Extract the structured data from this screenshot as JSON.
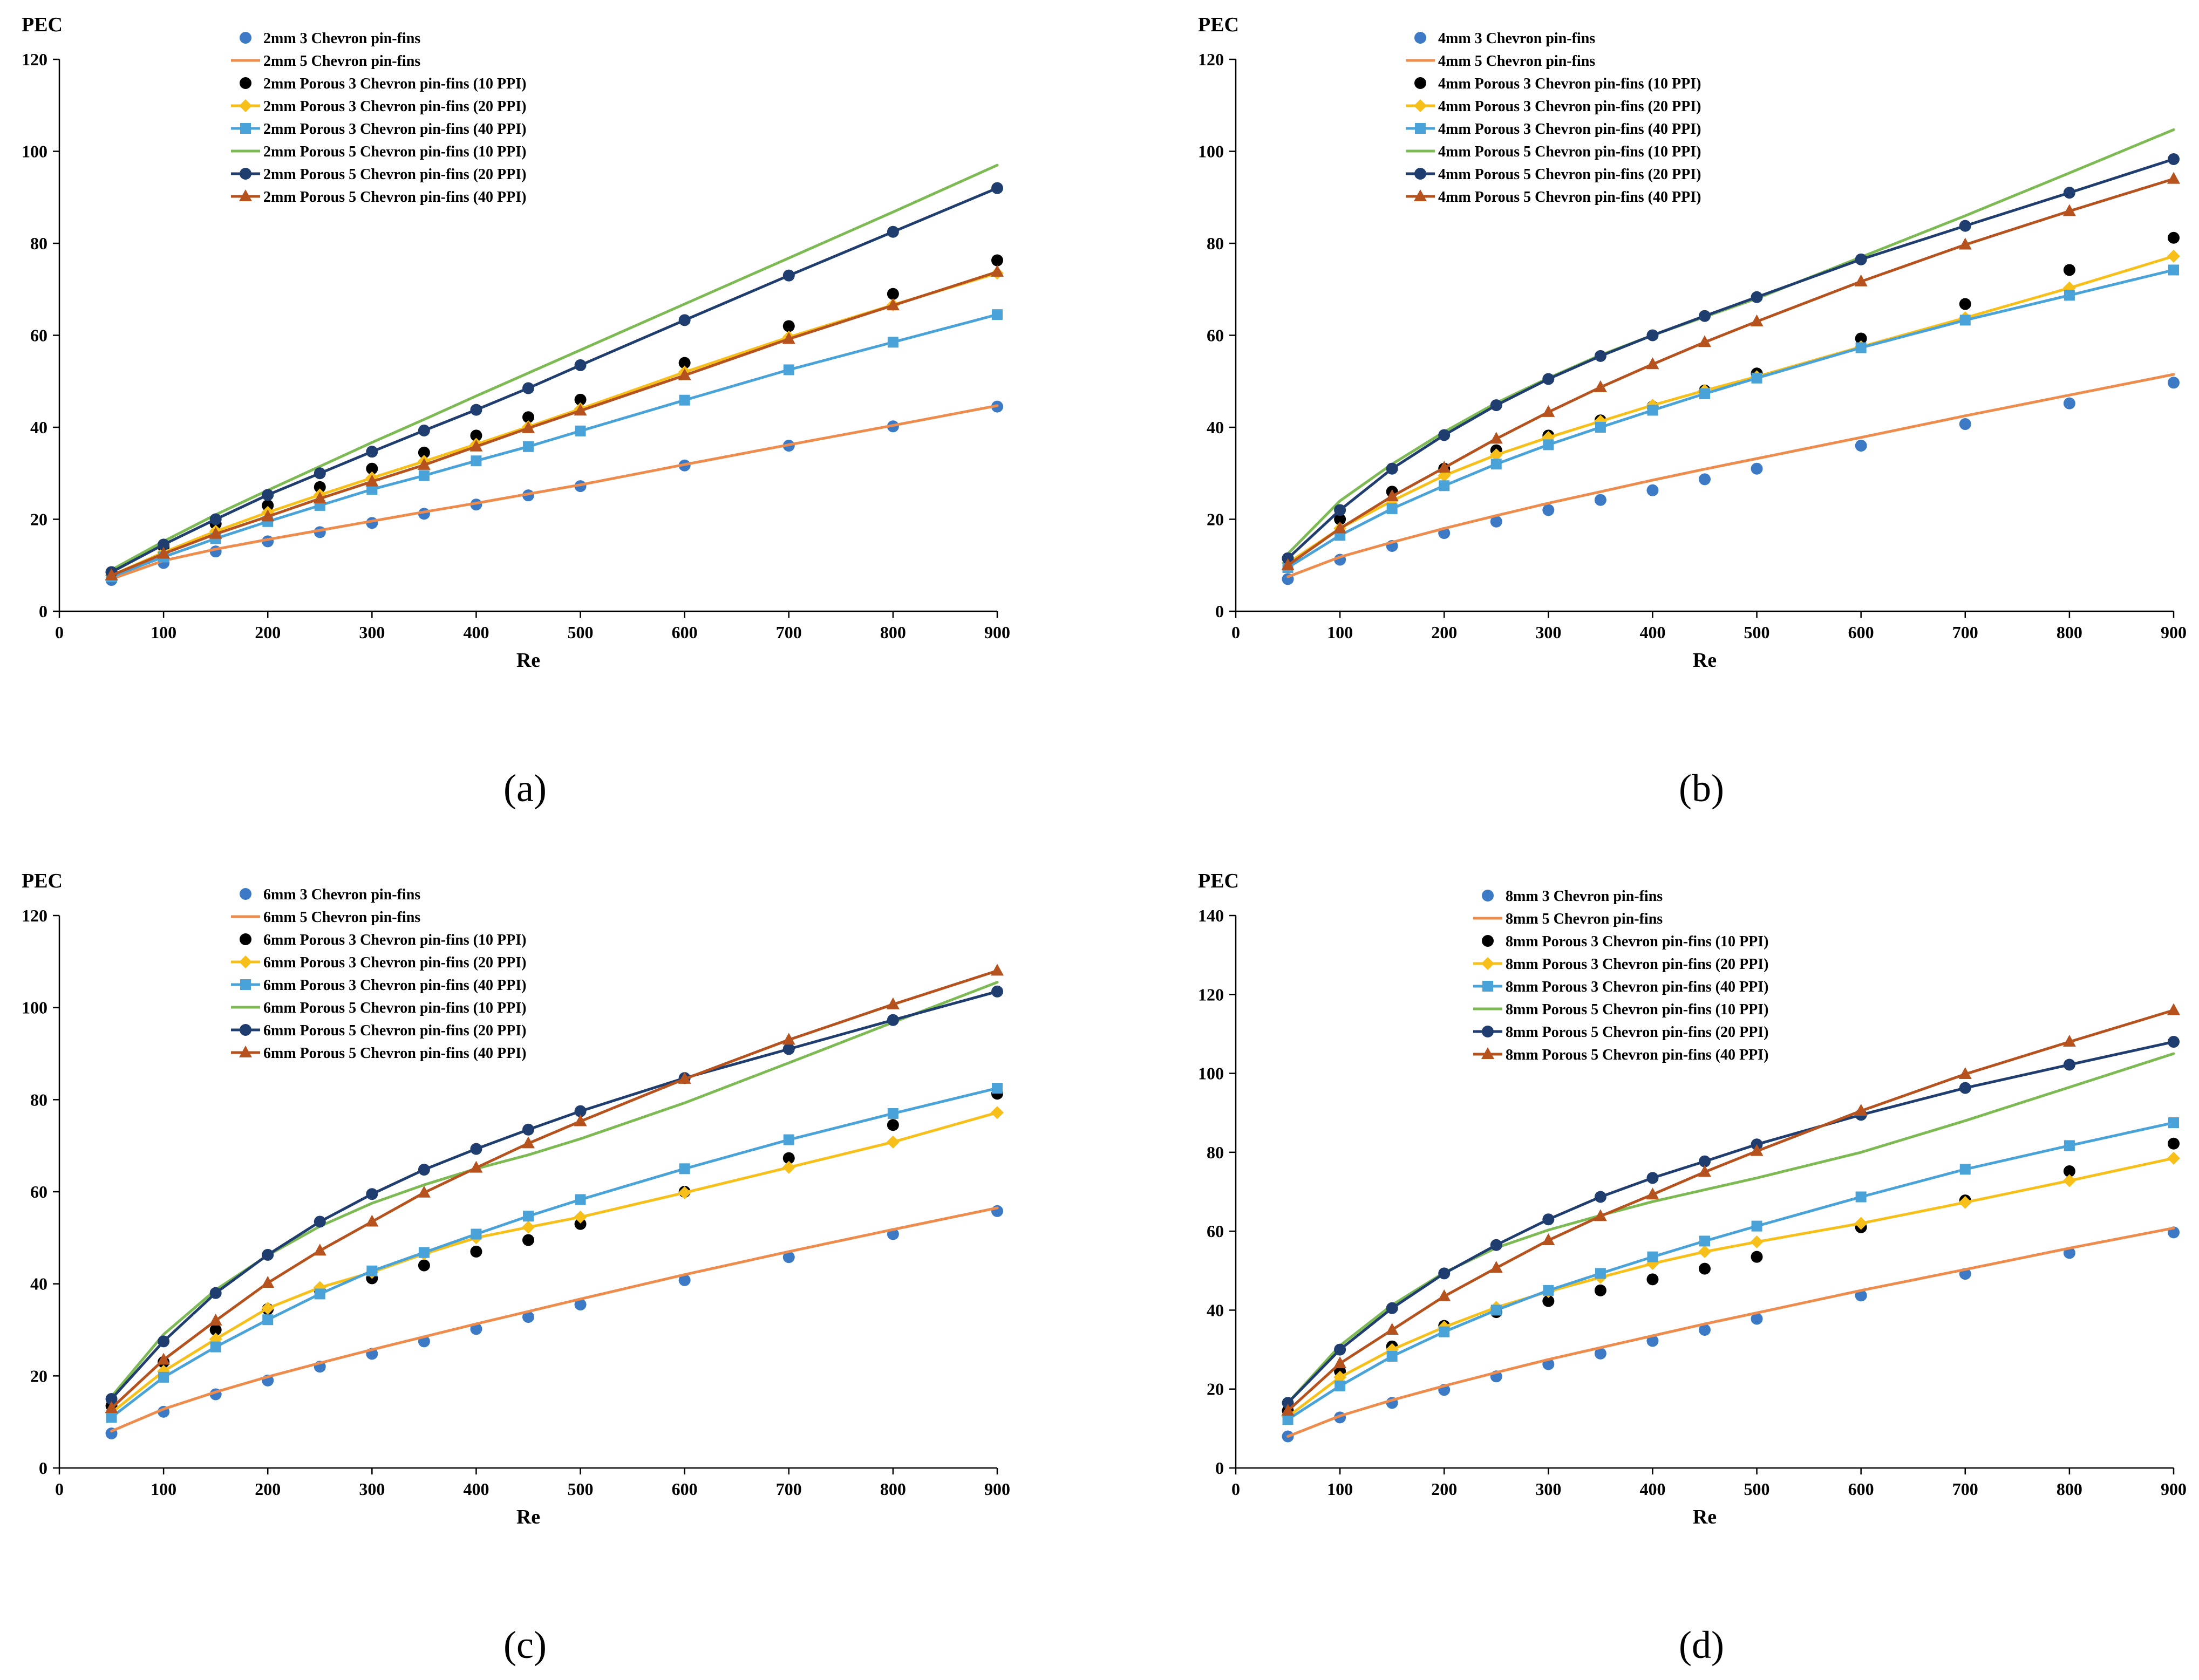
{
  "figure": {
    "captions": [
      "(a)",
      "(b)",
      "(c)",
      "(d)"
    ]
  },
  "series_styles": [
    {
      "color": "#3d7ac6",
      "marker": "circle",
      "line": false
    },
    {
      "color": "#ee8c4e",
      "marker": "none",
      "line": true
    },
    {
      "color": "#000000",
      "marker": "circle",
      "line": false
    },
    {
      "color": "#f7bf1a",
      "marker": "diamond",
      "line": true
    },
    {
      "color": "#4aa3d8",
      "marker": "square",
      "line": true
    },
    {
      "color": "#7dba54",
      "marker": "none",
      "line": true
    },
    {
      "color": "#1f3d6e",
      "marker": "circle",
      "line": true
    },
    {
      "color": "#b6521e",
      "marker": "triangle",
      "line": true
    }
  ],
  "chart_data": [
    {
      "type": "line",
      "panel": "(a)",
      "title": "",
      "xlabel": "Re",
      "ylabel": "PEC",
      "xlim": [
        0,
        900
      ],
      "ylim": [
        0,
        120
      ],
      "xticks": [
        0,
        100,
        200,
        300,
        400,
        500,
        600,
        700,
        800,
        900
      ],
      "yticks": [
        0,
        20,
        40,
        60,
        80,
        100,
        120
      ],
      "x": [
        50,
        100,
        150,
        200,
        250,
        300,
        350,
        400,
        450,
        500,
        600,
        700,
        800,
        900
      ],
      "series": [
        {
          "name": "2mm 3 Chevron pin-fins",
          "values": [
            6.8,
            10.5,
            13,
            15.2,
            17.2,
            19.2,
            21.2,
            23.2,
            25.2,
            27.2,
            31.7,
            36,
            40.2,
            44.5
          ]
        },
        {
          "name": "2mm 5 Chevron pin-fins",
          "values": [
            7,
            11,
            13.5,
            15.6,
            17.6,
            19.6,
            21.6,
            23.5,
            25.5,
            27.5,
            31.9,
            36.2,
            40.4,
            44.7
          ]
        },
        {
          "name": "2mm Porous 3 Chevron pin-fins (10 PPI)",
          "values": [
            8.5,
            14,
            19,
            23,
            27,
            31,
            34.5,
            38.2,
            42.2,
            46,
            54,
            62,
            69,
            76.3
          ]
        },
        {
          "name": "2mm Porous 3 Chevron pin-fins (20 PPI)",
          "values": [
            7.8,
            12.8,
            17.4,
            21.5,
            25.3,
            29,
            32.6,
            36.3,
            40.1,
            44,
            52,
            59.6,
            66.6,
            73.5
          ]
        },
        {
          "name": "2mm Porous 3 Chevron pin-fins (40 PPI)",
          "values": [
            7.5,
            11.8,
            15.8,
            19.5,
            23,
            26.5,
            29.5,
            32.7,
            35.8,
            39.2,
            45.9,
            52.5,
            58.5,
            64.5
          ]
        },
        {
          "name": "2mm Porous 5 Chevron pin-fins (10 PPI)",
          "values": [
            9,
            15.2,
            21,
            26.3,
            31.5,
            36.7,
            41.7,
            46.8,
            51.8,
            56.8,
            66.8,
            76.8,
            86.8,
            97
          ]
        },
        {
          "name": "2mm Porous 5 Chevron pin-fins (20 PPI)",
          "values": [
            8.5,
            14.5,
            20,
            25.3,
            30,
            34.7,
            39.3,
            43.8,
            48.5,
            53.5,
            63.3,
            73,
            82.5,
            92
          ]
        },
        {
          "name": "2mm Porous 5 Chevron pin-fins (40 PPI)",
          "values": [
            7.8,
            12.5,
            16.8,
            20.6,
            24.5,
            28.2,
            31.8,
            35.8,
            39.8,
            43.6,
            51.3,
            59.2,
            66.5,
            73.8
          ]
        }
      ]
    },
    {
      "type": "line",
      "panel": "(b)",
      "title": "",
      "xlabel": "Re",
      "ylabel": "PEC",
      "xlim": [
        0,
        900
      ],
      "ylim": [
        0,
        120
      ],
      "xticks": [
        0,
        100,
        200,
        300,
        400,
        500,
        600,
        700,
        800,
        900
      ],
      "yticks": [
        0,
        20,
        40,
        60,
        80,
        100,
        120
      ],
      "x": [
        50,
        100,
        150,
        200,
        250,
        300,
        350,
        400,
        450,
        500,
        600,
        700,
        800,
        900
      ],
      "series": [
        {
          "name": "4mm 3 Chevron pin-fins",
          "values": [
            7,
            11.2,
            14.2,
            17,
            19.5,
            22,
            24.2,
            26.3,
            28.7,
            31,
            36,
            40.7,
            45.2,
            49.7
          ]
        },
        {
          "name": "4mm 5 Chevron pin-fins",
          "values": [
            7.5,
            11.8,
            15,
            18,
            20.8,
            23.5,
            26,
            28.5,
            30.9,
            33.2,
            37.8,
            42.5,
            47,
            51.5
          ]
        },
        {
          "name": "4mm Porous 3 Chevron pin-fins (10 PPI)",
          "values": [
            11.5,
            20,
            26,
            31,
            35,
            38.2,
            41.5,
            44.5,
            48,
            51.7,
            59.3,
            66.8,
            74.2,
            81.2
          ]
        },
        {
          "name": "4mm Porous 3 Chevron pin-fins (20 PPI)",
          "values": [
            10.5,
            18,
            24,
            29.5,
            34,
            37.8,
            41.3,
            44.8,
            48,
            51,
            57.5,
            63.8,
            70.3,
            77.2
          ]
        },
        {
          "name": "4mm Porous 3 Chevron pin-fins (40 PPI)",
          "values": [
            9.5,
            16.5,
            22.3,
            27.3,
            32,
            36.2,
            40,
            43.7,
            47.3,
            50.7,
            57.3,
            63.3,
            68.7,
            74.2
          ]
        },
        {
          "name": "4mm Porous 5 Chevron pin-fins (10 PPI)",
          "values": [
            12.5,
            24,
            32,
            39,
            45.3,
            50.7,
            55.7,
            60,
            64,
            68,
            77,
            86,
            95.3,
            104.7
          ]
        },
        {
          "name": "4mm Porous 5 Chevron pin-fins (20 PPI)",
          "values": [
            11.5,
            22,
            31,
            38.3,
            44.8,
            50.5,
            55.5,
            60,
            64.2,
            68.3,
            76.5,
            83.8,
            91,
            98.3
          ]
        },
        {
          "name": "4mm Porous 5 Chevron pin-fins (40 PPI)",
          "values": [
            10,
            18,
            25,
            31.2,
            37.5,
            43.3,
            48.7,
            53.7,
            58.5,
            63,
            71.7,
            79.7,
            87,
            94
          ]
        }
      ]
    },
    {
      "type": "line",
      "panel": "(c)",
      "title": "",
      "xlabel": "Re",
      "ylabel": "PEC",
      "xlim": [
        0,
        900
      ],
      "ylim": [
        0,
        120
      ],
      "xticks": [
        0,
        100,
        200,
        300,
        400,
        500,
        600,
        700,
        800,
        900
      ],
      "yticks": [
        0,
        20,
        40,
        60,
        80,
        100,
        120
      ],
      "x": [
        50,
        100,
        150,
        200,
        250,
        300,
        350,
        400,
        450,
        500,
        600,
        700,
        800,
        900
      ],
      "series": [
        {
          "name": "6mm 3 Chevron pin-fins",
          "values": [
            7.5,
            12.2,
            16,
            19,
            22,
            24.8,
            27.5,
            30.2,
            32.8,
            35.5,
            40.8,
            45.8,
            50.8,
            55.8
          ]
        },
        {
          "name": "6mm 5 Chevron pin-fins",
          "values": [
            8,
            12.8,
            16.5,
            19.8,
            22.8,
            25.7,
            28.5,
            31.3,
            34,
            36.7,
            42,
            47,
            51.8,
            56.5
          ]
        },
        {
          "name": "6mm Porous 3 Chevron pin-fins (10 PPI)",
          "values": [
            13.5,
            23,
            30,
            34.5,
            38.5,
            41.2,
            44,
            47,
            49.5,
            53,
            60,
            67.3,
            74.5,
            81.3
          ]
        },
        {
          "name": "6mm Porous 3 Chevron pin-fins (20 PPI)",
          "values": [
            12,
            21,
            28,
            34.7,
            39.2,
            42.5,
            46.5,
            50,
            52.3,
            54.5,
            59.8,
            65.3,
            70.8,
            77.2
          ]
        },
        {
          "name": "6mm Porous 3 Chevron pin-fins (40 PPI)",
          "values": [
            11,
            19.7,
            26.3,
            32.2,
            37.8,
            42.8,
            46.8,
            50.8,
            54.7,
            58.3,
            65,
            71.3,
            77,
            82.5
          ]
        },
        {
          "name": "6mm Porous 5 Chevron pin-fins (10 PPI)",
          "values": [
            15.5,
            29,
            38.7,
            46.2,
            52.5,
            57.5,
            61.5,
            65,
            68,
            71.5,
            79.3,
            88,
            96.8,
            105.5
          ]
        },
        {
          "name": "6mm Porous 5 Chevron pin-fins (20 PPI)",
          "values": [
            15,
            27.5,
            38,
            46.3,
            53.5,
            59.5,
            64.8,
            69.3,
            73.5,
            77.5,
            84.7,
            91,
            97.3,
            103.5
          ]
        },
        {
          "name": "6mm Porous 5 Chevron pin-fins (40 PPI)",
          "values": [
            13,
            23.5,
            32,
            40.2,
            47.2,
            53.5,
            59.8,
            65.2,
            70.5,
            75.3,
            84.5,
            93,
            100.7,
            108
          ]
        }
      ]
    },
    {
      "type": "line",
      "panel": "(d)",
      "title": "",
      "xlabel": "Re",
      "ylabel": "PEC",
      "xlim": [
        0,
        900
      ],
      "ylim": [
        0,
        140
      ],
      "xticks": [
        0,
        100,
        200,
        300,
        400,
        500,
        600,
        700,
        800,
        900
      ],
      "yticks": [
        0,
        20,
        40,
        60,
        80,
        100,
        120,
        140
      ],
      "x": [
        50,
        100,
        150,
        200,
        250,
        300,
        350,
        400,
        450,
        500,
        600,
        700,
        800,
        900
      ],
      "series": [
        {
          "name": "8mm 3 Chevron pin-fins",
          "values": [
            8,
            12.8,
            16.5,
            19.8,
            23.2,
            26.3,
            29,
            32.2,
            35,
            37.8,
            43.7,
            49.2,
            54.5,
            59.7
          ]
        },
        {
          "name": "8mm 5 Chevron pin-fins",
          "values": [
            8,
            13.2,
            17.2,
            20.8,
            24.2,
            27.5,
            30.5,
            33.5,
            36.5,
            39.3,
            45,
            50.3,
            55.7,
            60.8
          ]
        },
        {
          "name": "8mm Porous 3 Chevron pin-fins (10 PPI)",
          "values": [
            14.5,
            24.5,
            30.8,
            36,
            39.5,
            42.3,
            45,
            47.8,
            50.5,
            53.5,
            61,
            67.8,
            75.2,
            82.2
          ]
        },
        {
          "name": "8mm Porous 3 Chevron pin-fins (20 PPI)",
          "values": [
            13,
            23,
            30,
            35.7,
            40.7,
            44.7,
            48.3,
            51.8,
            54.8,
            57.3,
            62,
            67.3,
            72.8,
            78.5
          ]
        },
        {
          "name": "8mm Porous 3 Chevron pin-fins (40 PPI)",
          "values": [
            12.3,
            20.8,
            28.3,
            34.5,
            40,
            45,
            49.3,
            53.5,
            57.5,
            61.3,
            68.7,
            75.7,
            81.7,
            87.5
          ]
        },
        {
          "name": "8mm Porous 5 Chevron pin-fins (10 PPI)",
          "values": [
            16.5,
            31,
            41.3,
            49.5,
            55.8,
            60.3,
            64,
            67.5,
            70.5,
            73.5,
            80,
            88,
            96.5,
            105
          ]
        },
        {
          "name": "8mm Porous 5 Chevron pin-fins (20 PPI)",
          "values": [
            16.5,
            30,
            40.5,
            49.3,
            56.5,
            63,
            68.7,
            73.5,
            77.7,
            82,
            89.5,
            96.3,
            102.2,
            108
          ]
        },
        {
          "name": "8mm Porous 5 Chevron pin-fins (40 PPI)",
          "values": [
            14.5,
            26.5,
            35,
            43.5,
            50.7,
            57.7,
            63.8,
            69.3,
            75,
            80.3,
            90.5,
            99.8,
            108,
            116
          ]
        }
      ]
    }
  ]
}
